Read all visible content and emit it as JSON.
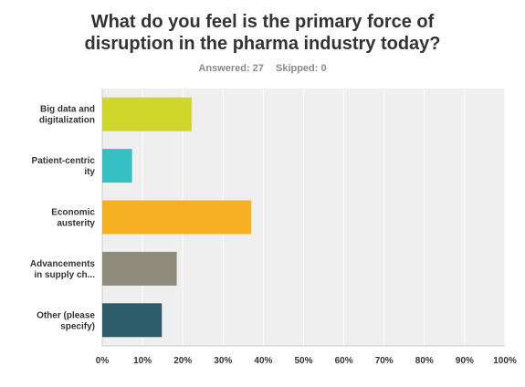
{
  "survey": {
    "question_line1": "What do you feel is the primary force of",
    "question_line2": "disruption in the pharma industry today?",
    "answered": "Answered: 27",
    "skipped": "Skipped: 0"
  },
  "chart_data": {
    "type": "bar",
    "orientation": "horizontal",
    "categories": [
      [
        "Big data and",
        "digitalization"
      ],
      [
        "Patient-centric",
        "ity"
      ],
      [
        "Economic",
        "austerity"
      ],
      [
        "Advancements",
        "in supply ch..."
      ],
      [
        "Other (please",
        "specify)"
      ]
    ],
    "values": [
      22.2,
      7.4,
      37.0,
      18.5,
      14.8
    ],
    "colors": [
      "#cfd72b",
      "#35c0c3",
      "#f6b123",
      "#8e8b7a",
      "#2d5c6b"
    ],
    "xlim": [
      0,
      100
    ],
    "ticks": [
      "0%",
      "10%",
      "20%",
      "30%",
      "40%",
      "50%",
      "60%",
      "70%",
      "80%",
      "90%",
      "100%"
    ],
    "grid": true,
    "background": "#efefef"
  }
}
